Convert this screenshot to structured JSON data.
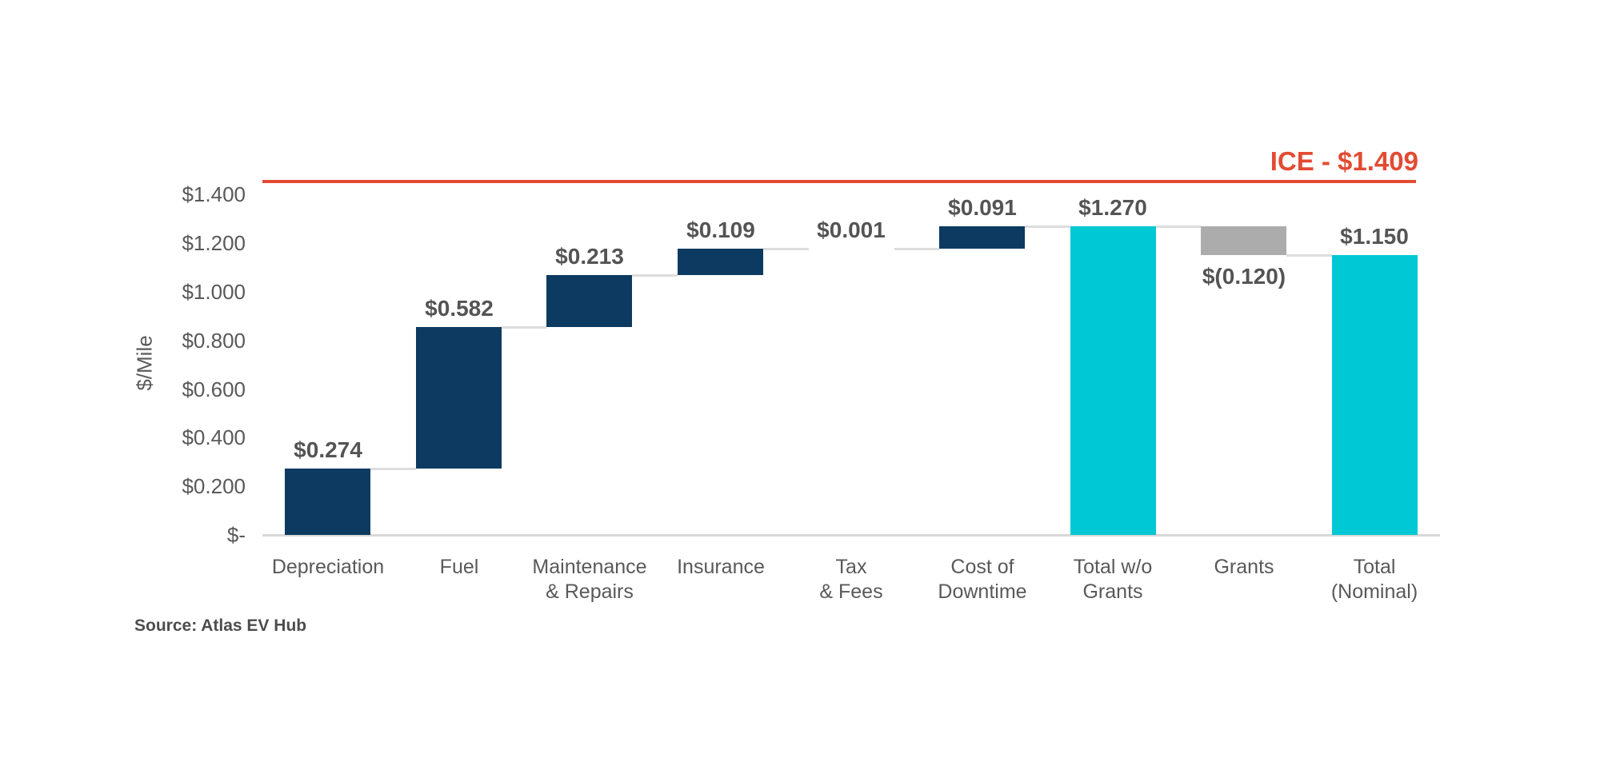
{
  "chart_data": {
    "type": "bar",
    "subtype": "waterfall",
    "title": "",
    "xlabel": "",
    "ylabel": "$/Mile",
    "ylim": [
      0,
      1.45
    ],
    "grid": "off",
    "legend": "none",
    "y_axis": {
      "ticks": [
        {
          "value": 0.0,
          "label": "$-"
        },
        {
          "value": 0.2,
          "label": "$0.200"
        },
        {
          "value": 0.4,
          "label": "$0.400"
        },
        {
          "value": 0.6,
          "label": "$0.600"
        },
        {
          "value": 0.8,
          "label": "$0.800"
        },
        {
          "value": 1.0,
          "label": "$1.000"
        },
        {
          "value": 1.2,
          "label": "$1.200"
        },
        {
          "value": 1.4,
          "label": "$1.400"
        }
      ]
    },
    "reference_line": {
      "name": "ICE",
      "value": 1.409,
      "label": "ICE - $1.409",
      "color": "#E24B33"
    },
    "bars": [
      {
        "name": "Depreciation",
        "category_lines": [
          "Depreciation"
        ],
        "value": 0.274,
        "value_label": "$0.274",
        "start": 0,
        "end": 0.274,
        "color": "navy",
        "label_position": "above"
      },
      {
        "name": "Fuel",
        "category_lines": [
          "Fuel"
        ],
        "value": 0.582,
        "value_label": "$0.582",
        "start": 0.274,
        "end": 0.856,
        "color": "navy",
        "label_position": "above"
      },
      {
        "name": "Maintenance & Repairs",
        "category_lines": [
          "Maintenance",
          "& Repairs"
        ],
        "value": 0.213,
        "value_label": "$0.213",
        "start": 0.856,
        "end": 1.069,
        "color": "navy",
        "label_position": "above"
      },
      {
        "name": "Insurance",
        "category_lines": [
          "Insurance"
        ],
        "value": 0.109,
        "value_label": "$0.109",
        "start": 1.069,
        "end": 1.178,
        "color": "navy",
        "label_position": "above"
      },
      {
        "name": "Tax & Fees",
        "category_lines": [
          "Tax",
          "& Fees"
        ],
        "value": 0.001,
        "value_label": "$0.001",
        "start": 1.178,
        "end": 1.179,
        "color": "navy",
        "label_position": "above"
      },
      {
        "name": "Cost of Downtime",
        "category_lines": [
          "Cost of",
          "Downtime"
        ],
        "value": 0.091,
        "value_label": "$0.091",
        "start": 1.179,
        "end": 1.27,
        "color": "navy",
        "label_position": "above"
      },
      {
        "name": "Total w/o Grants",
        "category_lines": [
          "Total w/o",
          "Grants"
        ],
        "value": 1.27,
        "value_label": "$1.270",
        "start": 0,
        "end": 1.27,
        "color": "teal",
        "label_position": "above"
      },
      {
        "name": "Grants",
        "category_lines": [
          "Grants"
        ],
        "value": -0.12,
        "value_label": "$(0.120)",
        "start": 1.27,
        "end": 1.15,
        "color": "gray",
        "label_position": "below"
      },
      {
        "name": "Total (Nominal)",
        "category_lines": [
          "Total",
          "(Nominal)"
        ],
        "value": 1.15,
        "value_label": "$1.150",
        "start": 0,
        "end": 1.15,
        "color": "teal",
        "label_position": "above"
      }
    ],
    "colors": {
      "navy": "#0C3A60",
      "teal": "#00C8D4",
      "gray": "#ACACAC",
      "reference": "#E24B33",
      "connector": "#DDDDDD",
      "axis_line": "#D9D9D9",
      "text": "#595959"
    },
    "source": "Source: Atlas EV Hub"
  }
}
